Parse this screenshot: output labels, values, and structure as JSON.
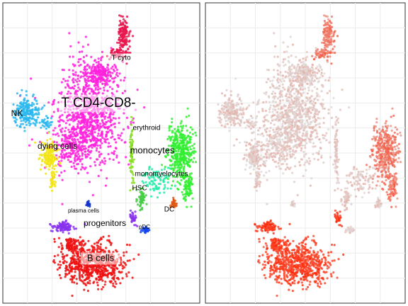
{
  "chart_data": [
    {
      "type": "scatter",
      "panel": "left",
      "coloring": "cluster",
      "grid": true,
      "clusters": [
        {
          "name": "T CD4-CD8-",
          "color": "#ff22dd"
        },
        {
          "name": "T cyto",
          "color": "#e8174f"
        },
        {
          "name": "NK",
          "color": "#2ab7ee"
        },
        {
          "name": "dying cells",
          "color": "#f2e414"
        },
        {
          "name": "monocytes",
          "color": "#33ee33"
        },
        {
          "name": "erythroid",
          "color": "#88dd22"
        },
        {
          "name": "monomyelocytes",
          "color": "#22eeaa"
        },
        {
          "name": "HSC",
          "color": "#44cc44"
        },
        {
          "name": "DC",
          "color": "#dd5511"
        },
        {
          "name": "plasma cells",
          "color": "#1133cc"
        },
        {
          "name": "progenitors",
          "color": "#8833ee"
        },
        {
          "name": "pDC",
          "color": "#1144ee"
        },
        {
          "name": "B cells",
          "color": "#ee1111"
        }
      ],
      "labels": [
        {
          "text": "T cyto",
          "cluster": "T cyto",
          "size": "small",
          "boxed": true
        },
        {
          "text": "T CD4-CD8-",
          "cluster": "T CD4-CD8-",
          "size": "large",
          "boxed": true
        },
        {
          "text": "NK",
          "cluster": "NK",
          "size": "medium",
          "boxed": false
        },
        {
          "text": "erythroid",
          "cluster": "erythroid",
          "size": "small",
          "boxed": false
        },
        {
          "text": "dying cells",
          "cluster": "dying cells",
          "size": "medium",
          "boxed": false
        },
        {
          "text": "monocytes",
          "cluster": "monocytes",
          "size": "medium-large",
          "boxed": false
        },
        {
          "text": "monomyelocytes",
          "cluster": "monomyelocytes",
          "size": "small",
          "boxed": false
        },
        {
          "text": "HSC",
          "cluster": "HSC",
          "size": "small",
          "boxed": false
        },
        {
          "text": "DC",
          "cluster": "DC",
          "size": "small",
          "boxed": false
        },
        {
          "text": "plasma cells",
          "cluster": "plasma cells",
          "size": "xsmall",
          "boxed": false
        },
        {
          "text": "progenitors",
          "cluster": "progenitors",
          "size": "medium",
          "boxed": false
        },
        {
          "text": "pDC",
          "cluster": "pDC",
          "size": "xsmall",
          "boxed": false
        },
        {
          "text": "B cells",
          "cluster": "B cells",
          "size": "medium-large",
          "boxed": true
        }
      ]
    },
    {
      "type": "scatter",
      "panel": "right",
      "coloring": "continuous",
      "grid": true,
      "color_low": "#dddddd",
      "color_high": "#ff2200",
      "high_regions": [
        "B cells",
        "progenitors",
        "monocytes",
        "T cyto"
      ]
    }
  ]
}
